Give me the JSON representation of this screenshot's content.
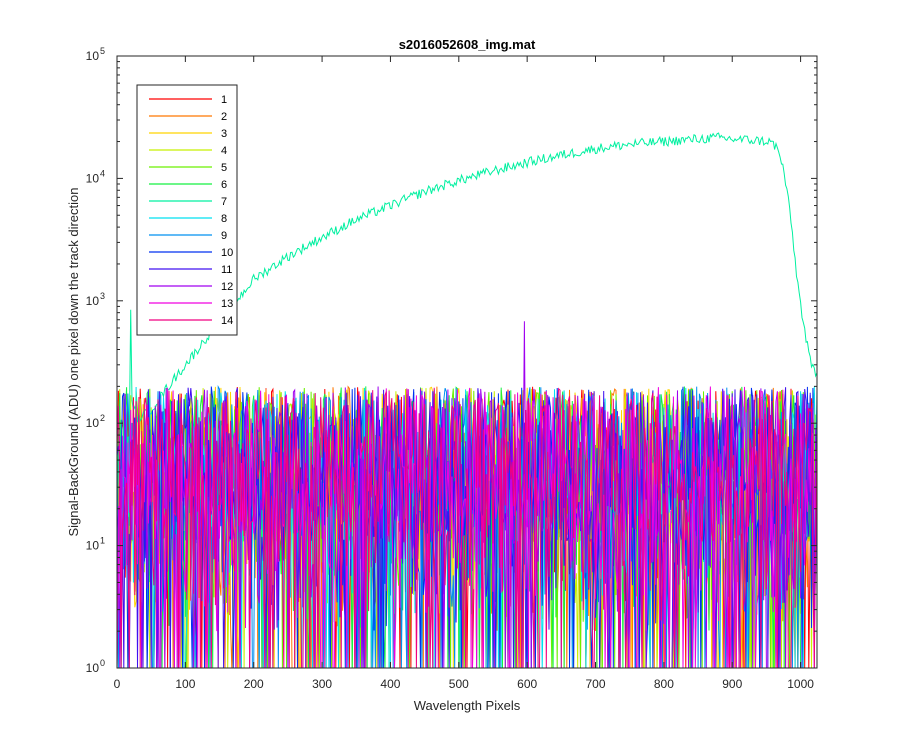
{
  "chart_data": {
    "type": "line",
    "title": "s2016052608_img.mat",
    "xlabel": "Wavelength Pixels",
    "ylabel": "Signal-BackGround (ADU) one pixel down the track direction",
    "xlim": [
      0,
      1024
    ],
    "ylim": [
      1,
      100000
    ],
    "yscale": "log",
    "grid": false,
    "legend_position": "top-left",
    "x_ticks": [
      0,
      100,
      200,
      300,
      400,
      500,
      600,
      700,
      800,
      900,
      1000
    ],
    "y_ticks": [
      {
        "value": 1,
        "base": "10",
        "exp": "0"
      },
      {
        "value": 10,
        "base": "10",
        "exp": "1"
      },
      {
        "value": 100,
        "base": "10",
        "exp": "2"
      },
      {
        "value": 1000,
        "base": "10",
        "exp": "3"
      },
      {
        "value": 10000,
        "base": "10",
        "exp": "4"
      },
      {
        "value": 100000,
        "base": "10",
        "exp": "5"
      }
    ],
    "series": [
      {
        "name": "1",
        "color": "#ff0000",
        "kind": "noise"
      },
      {
        "name": "2",
        "color": "#ff7700",
        "kind": "noise"
      },
      {
        "name": "3",
        "color": "#ffd400",
        "kind": "noise"
      },
      {
        "name": "4",
        "color": "#c8f000",
        "kind": "noise"
      },
      {
        "name": "5",
        "color": "#6cf000",
        "kind": "noise"
      },
      {
        "name": "6",
        "color": "#15f040",
        "kind": "noise"
      },
      {
        "name": "7",
        "color": "#00f0a0",
        "kind": "signal",
        "x": [
          0,
          10,
          15,
          19,
          22,
          30,
          50,
          75,
          100,
          125,
          150,
          175,
          200,
          250,
          300,
          350,
          400,
          450,
          500,
          550,
          600,
          650,
          700,
          750,
          800,
          850,
          880,
          900,
          930,
          955,
          965,
          975,
          985,
          995,
          1005,
          1015,
          1024
        ],
        "y": [
          60,
          70,
          200,
          1800,
          150,
          110,
          130,
          200,
          300,
          450,
          700,
          1000,
          1500,
          2300,
          3300,
          4600,
          6000,
          7800,
          9600,
          11500,
          13500,
          15500,
          17500,
          19000,
          20000,
          21000,
          21500,
          21000,
          20500,
          20000,
          18000,
          12000,
          5000,
          1500,
          600,
          300,
          250
        ]
      },
      {
        "name": "8",
        "color": "#00e0f0",
        "kind": "noise"
      },
      {
        "name": "9",
        "color": "#0090f0",
        "kind": "noise"
      },
      {
        "name": "10",
        "color": "#0030f0",
        "kind": "noise"
      },
      {
        "name": "11",
        "color": "#4010f0",
        "kind": "noise"
      },
      {
        "name": "12",
        "color": "#a000f0",
        "kind": "noise",
        "spike": {
          "x": 596,
          "y": 680
        }
      },
      {
        "name": "13",
        "color": "#f000e0",
        "kind": "noise"
      },
      {
        "name": "14",
        "color": "#f00080",
        "kind": "noise"
      }
    ],
    "noise_level": {
      "typical_range": [
        2,
        200
      ],
      "median": 40
    }
  }
}
